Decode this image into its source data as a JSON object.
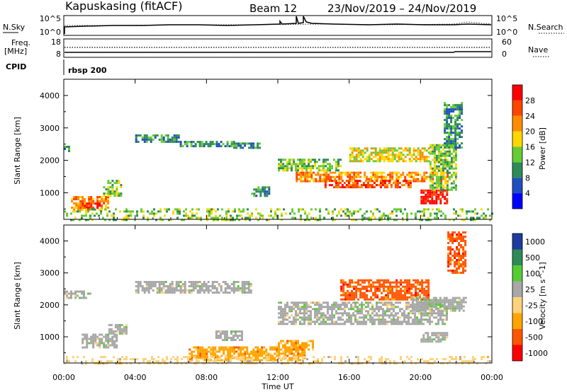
{
  "header": {
    "station": "Kapuskasing (fitACF)",
    "beam": "Beam 12",
    "dates": "23/Nov/2019 – 24/Nov/2019"
  },
  "nsky": {
    "label": "N.Sky",
    "left_ticks": [
      "10^5",
      "10^0"
    ],
    "right_ticks": [
      "10^5",
      "10^0"
    ],
    "right_label": "N.Search"
  },
  "freq": {
    "label_line1": "Freq.",
    "label_line2": "[MHz]",
    "left_ticks": [
      "18",
      "8"
    ],
    "right_ticks": [
      "60",
      "0"
    ],
    "right_label": "Nave"
  },
  "cpid": {
    "label": "CPID",
    "value": "rbsp 200"
  },
  "chart_data": [
    {
      "type": "heatmap",
      "quantity": "power",
      "ylabel": "Slant Range [km]",
      "xlabel": "Time UT",
      "x_unit": "hours UT",
      "xlim": [
        0,
        24
      ],
      "ylim": [
        180,
        4500
      ],
      "x_ticks": [
        "00:00",
        "04:00",
        "08:00",
        "12:00",
        "16:00",
        "20:00",
        "00:00"
      ],
      "y_ticks": [
        "1000",
        "2000",
        "3000",
        "4000"
      ],
      "colorbar": {
        "label": "Power [dB]",
        "ticks": [
          "4",
          "8",
          "12",
          "16",
          "20",
          "24",
          "28"
        ],
        "colors": [
          "#0000ff",
          "#1f4fbf",
          "#2e8b57",
          "#66cc33",
          "#ffd700",
          "#ff8c00",
          "#ff4500",
          "#ff0000"
        ]
      },
      "regions": [
        {
          "t": [
            0.0,
            0.3
          ],
          "r": [
            2300,
            2450
          ],
          "level": 8
        },
        {
          "t": [
            0.4,
            2.5
          ],
          "r": [
            500,
            900
          ],
          "level": 20
        },
        {
          "t": [
            1.0,
            2.0
          ],
          "r": [
            550,
            700
          ],
          "level": 28
        },
        {
          "t": [
            2.2,
            3.2
          ],
          "r": [
            900,
            1400
          ],
          "level": 10
        },
        {
          "t": [
            4.0,
            6.5
          ],
          "r": [
            2550,
            2800
          ],
          "level": 8
        },
        {
          "t": [
            6.5,
            9.5
          ],
          "r": [
            2450,
            2600
          ],
          "level": 8
        },
        {
          "t": [
            9.5,
            11.0
          ],
          "r": [
            2400,
            2550
          ],
          "level": 6
        },
        {
          "t": [
            10.5,
            11.5
          ],
          "r": [
            900,
            1200
          ],
          "level": 8
        },
        {
          "t": [
            12.0,
            15.5
          ],
          "r": [
            1700,
            2050
          ],
          "level": 12
        },
        {
          "t": [
            13.0,
            21.5
          ],
          "r": [
            1350,
            1650
          ],
          "level": 18
        },
        {
          "t": [
            14.5,
            19.5
          ],
          "r": [
            1200,
            1400
          ],
          "level": 24
        },
        {
          "t": [
            16.0,
            20.5
          ],
          "r": [
            2000,
            2400
          ],
          "level": 14
        },
        {
          "t": [
            20.0,
            21.5
          ],
          "r": [
            700,
            1100
          ],
          "level": 26
        },
        {
          "t": [
            20.5,
            22.0
          ],
          "r": [
            1100,
            2500
          ],
          "level": 10
        },
        {
          "t": [
            21.3,
            22.3
          ],
          "r": [
            2400,
            3800
          ],
          "level": 6
        },
        {
          "t": [
            0.0,
            24.0
          ],
          "r": [
            180,
            520
          ],
          "level": 10
        }
      ]
    },
    {
      "type": "heatmap",
      "quantity": "velocity",
      "ylabel": "Slant Range [km]",
      "xlabel": "Time UT",
      "x_unit": "hours UT",
      "xlim": [
        0,
        24
      ],
      "ylim": [
        180,
        4500
      ],
      "x_ticks": [
        "00:00",
        "04:00",
        "08:00",
        "12:00",
        "16:00",
        "20:00",
        "00:00"
      ],
      "y_ticks": [
        "1000",
        "2000",
        "3000",
        "4000"
      ],
      "colorbar": {
        "label": "Velocity [m s^-1]",
        "ticks": [
          "1000",
          "500",
          "100",
          "25",
          "-25",
          "-100",
          "-500",
          "-1000"
        ],
        "colors": [
          "#1e3ca0",
          "#2e8b57",
          "#55cc33",
          "#a8a8a8",
          "#ffd27a",
          "#ffa500",
          "#ff5500",
          "#ff0000"
        ]
      },
      "regions": [
        {
          "t": [
            0.0,
            1.5
          ],
          "r": [
            2200,
            2450
          ],
          "level": 3
        },
        {
          "t": [
            1.0,
            3.0
          ],
          "r": [
            700,
            1100
          ],
          "level": 3
        },
        {
          "t": [
            2.5,
            3.5
          ],
          "r": [
            1100,
            1400
          ],
          "level": 3
        },
        {
          "t": [
            4.0,
            10.5
          ],
          "r": [
            2400,
            2750
          ],
          "level": 3
        },
        {
          "t": [
            8.5,
            10.0
          ],
          "r": [
            900,
            1200
          ],
          "level": 3
        },
        {
          "t": [
            7.0,
            13.5
          ],
          "r": [
            300,
            700
          ],
          "level": 5
        },
        {
          "t": [
            12.0,
            14.0
          ],
          "r": [
            600,
            900
          ],
          "level": 5
        },
        {
          "t": [
            12.0,
            21.5
          ],
          "r": [
            1400,
            2100
          ],
          "level": 3
        },
        {
          "t": [
            15.5,
            20.5
          ],
          "r": [
            2200,
            2800
          ],
          "level": 6
        },
        {
          "t": [
            19.5,
            22.5
          ],
          "r": [
            1850,
            2250
          ],
          "level": 3
        },
        {
          "t": [
            20.0,
            21.5
          ],
          "r": [
            850,
            1150
          ],
          "level": 3
        },
        {
          "t": [
            21.5,
            22.5
          ],
          "r": [
            3000,
            4300
          ],
          "level": 6
        },
        {
          "t": [
            0.0,
            24.0
          ],
          "r": [
            180,
            400
          ],
          "level": 4
        }
      ]
    }
  ]
}
